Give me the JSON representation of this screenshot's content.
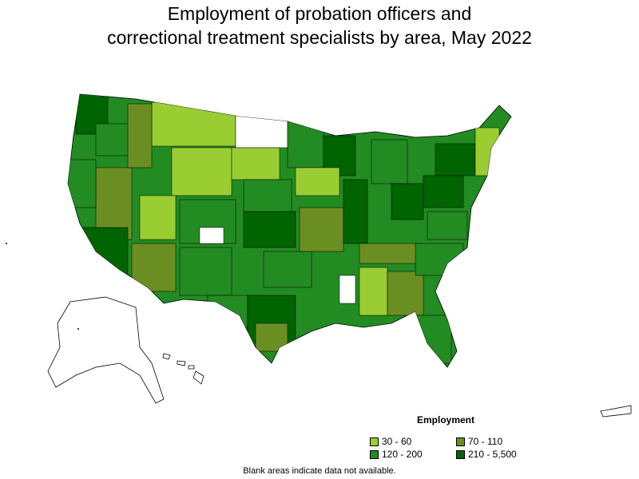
{
  "title_line1": "Employment of probation officers and",
  "title_line2": "correctional treatment specialists by area, May 2022",
  "legend": {
    "title": "Employment",
    "items": [
      {
        "label": "30 - 60",
        "color": "#9acd32"
      },
      {
        "label": "70 - 110",
        "color": "#6b8e23"
      },
      {
        "label": "120 - 200",
        "color": "#228b22"
      },
      {
        "label": "210 - 5,500",
        "color": "#006400"
      }
    ]
  },
  "note": "Blank areas indicate data not available."
}
